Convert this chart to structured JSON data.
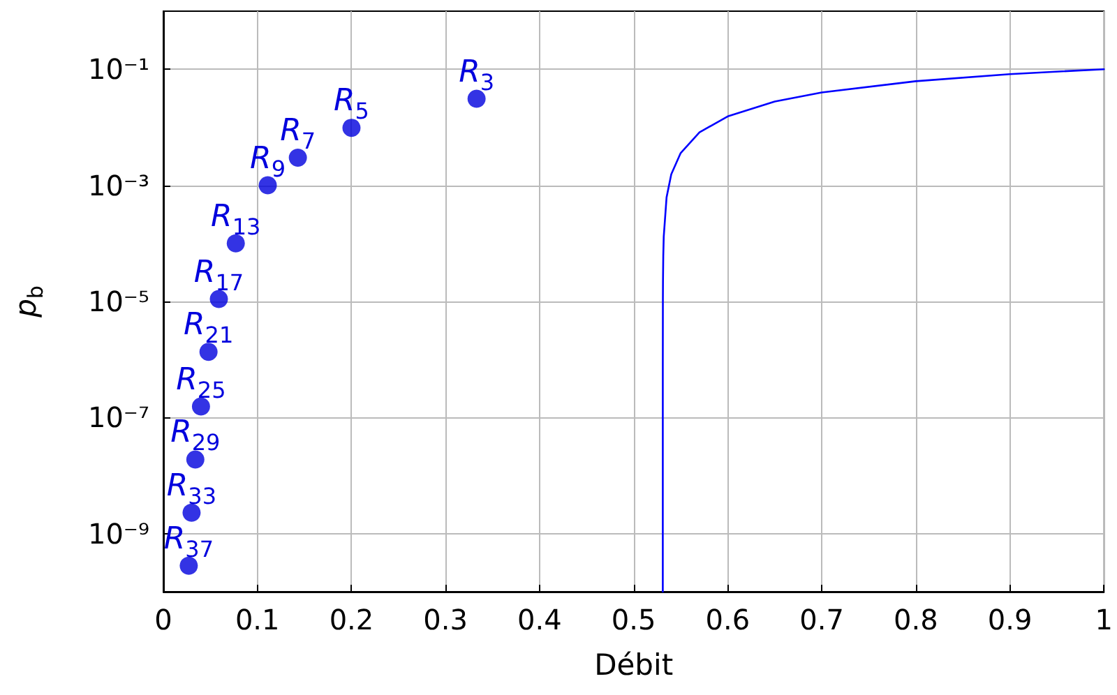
{
  "chart_data": {
    "type": "scatter",
    "xlabel": "Débit",
    "ylabel": "p$_{b}$",
    "log": "y",
    "grid": true,
    "xlim": [
      0,
      1
    ],
    "xticks": [
      0,
      0.1,
      0.2,
      0.3,
      0.4,
      0.5,
      0.6,
      0.7,
      0.8,
      0.9,
      1
    ],
    "ylim": [
      1e-10,
      1
    ],
    "yticks": [
      {
        "value": 1e-09,
        "label": "10⁻⁹"
      },
      {
        "value": 1e-07,
        "label": "10⁻⁷"
      },
      {
        "value": 1e-05,
        "label": "10⁻⁵"
      },
      {
        "value": 0.001,
        "label": "10⁻³"
      },
      {
        "value": 0.1,
        "label": "10⁻¹"
      }
    ],
    "series": [
      {
        "color": "#0000dd",
        "marker": "circle",
        "x": [
          0.333,
          0.2,
          0.143,
          0.111,
          0.077,
          0.059,
          0.048,
          0.04,
          0.034,
          0.03,
          0.027
        ],
        "values": [
          0.031,
          0.0098,
          0.003,
          0.001,
          0.0001,
          1.1e-05,
          1.35e-06,
          1.55e-07,
          1.9e-08,
          2.3e-09,
          2.8e-10
        ]
      },
      {
        "type": "line",
        "color": "#0000ff",
        "marker": "none",
        "line_style": "solid",
        "x": [
          0.531,
          0.53101,
          0.5311,
          0.5312,
          0.5315,
          0.532,
          0.535,
          0.54,
          0.55,
          0.57,
          0.6,
          0.65,
          0.7,
          0.8,
          0.9,
          1
        ],
        "values": [
          1e-10,
          9e-07,
          1.1e-05,
          2.25e-05,
          6.1e-05,
          0.000131,
          0.00062,
          0.00155,
          0.0036,
          0.0082,
          0.0154,
          0.0278,
          0.0398,
          0.0622,
          0.0824,
          0.1
        ]
      }
    ],
    "annotations": [
      {
        "text": "R$_{3}$",
        "x": 0.333,
        "y": 0.031
      },
      {
        "text": "R$_{5}$",
        "x": 0.2,
        "y": 0.0098
      },
      {
        "text": "R$_{7}$",
        "x": 0.143,
        "y": 0.003
      },
      {
        "text": "R$_{9}$",
        "x": 0.111,
        "y": 0.001
      },
      {
        "text": "R$_{13}$",
        "x": 0.077,
        "y": 0.0001
      },
      {
        "text": "R$_{17}$",
        "x": 0.059,
        "y": 1.1e-05
      },
      {
        "text": "R$_{21}$",
        "x": 0.048,
        "y": 1.35e-06
      },
      {
        "text": "R$_{25}$",
        "x": 0.04,
        "y": 1.55e-07
      },
      {
        "text": "R$_{29}$",
        "x": 0.034,
        "y": 1.9e-08
      },
      {
        "text": "R$_{33}$",
        "x": 0.03,
        "y": 2.3e-09
      },
      {
        "text": "R$_{37}$",
        "x": 0.027,
        "y": 2.8e-10
      }
    ]
  }
}
